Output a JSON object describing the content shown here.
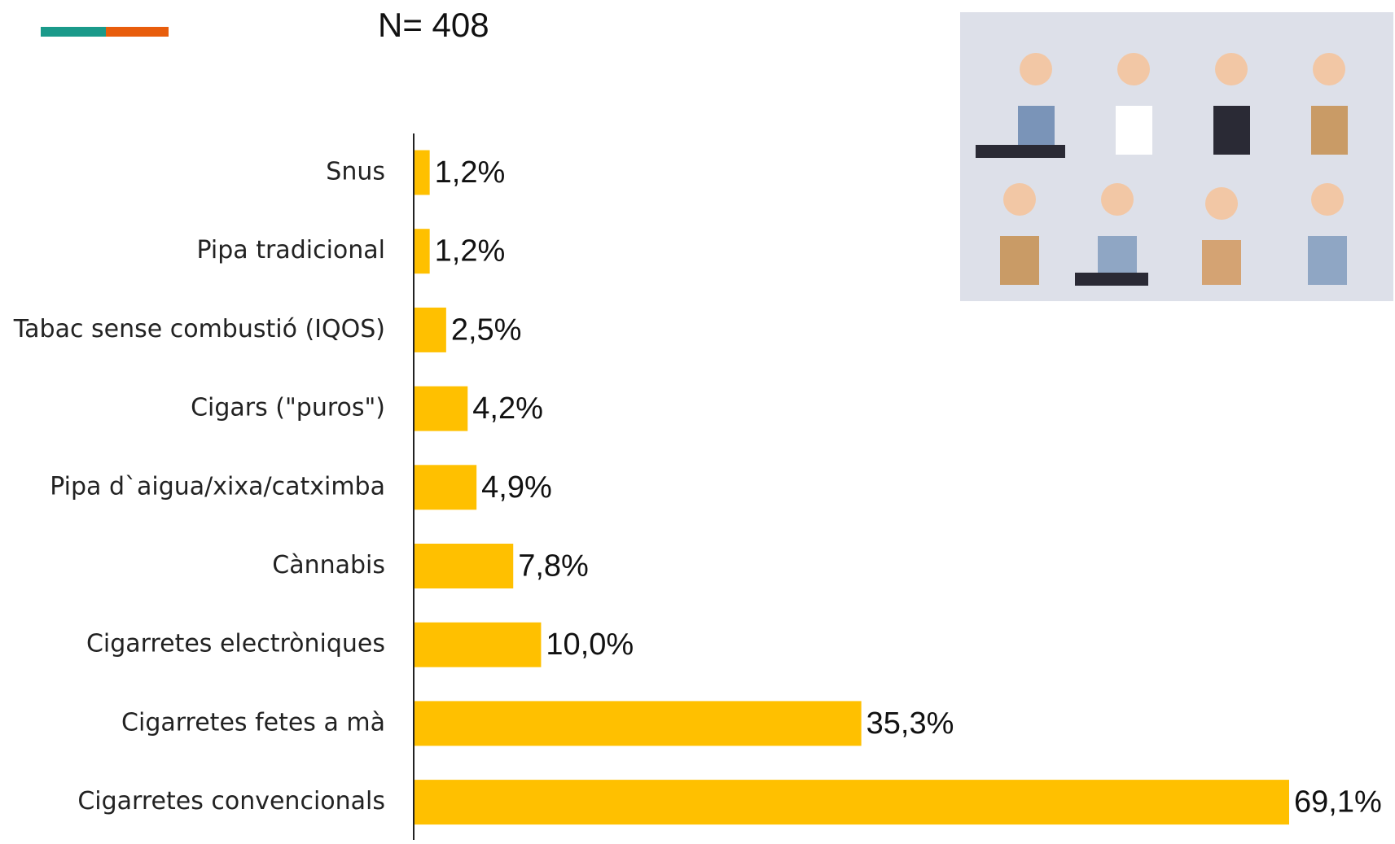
{
  "n_label": "N= 408",
  "chart_data": {
    "type": "bar",
    "orientation": "horizontal",
    "categories": [
      "Snus",
      "Pipa tradicional",
      "Tabac sense combustió (IQOS)",
      "Cigars (\"puros\")",
      "Pipa d`aigua/xixa/catximba",
      "Cànnabis",
      "Cigarretes electròniques",
      "Cigarretes fetes a mà",
      "Cigarretes convencionals"
    ],
    "values": [
      1.2,
      1.2,
      2.5,
      4.2,
      4.9,
      7.8,
      10.0,
      35.3,
      69.1
    ],
    "value_labels": [
      "1,2%",
      "1,2%",
      "2,5%",
      "4,2%",
      "4,9%",
      "7,8%",
      "10,0%",
      "35,3%",
      "69,1%"
    ],
    "color": "#ffc000"
  }
}
